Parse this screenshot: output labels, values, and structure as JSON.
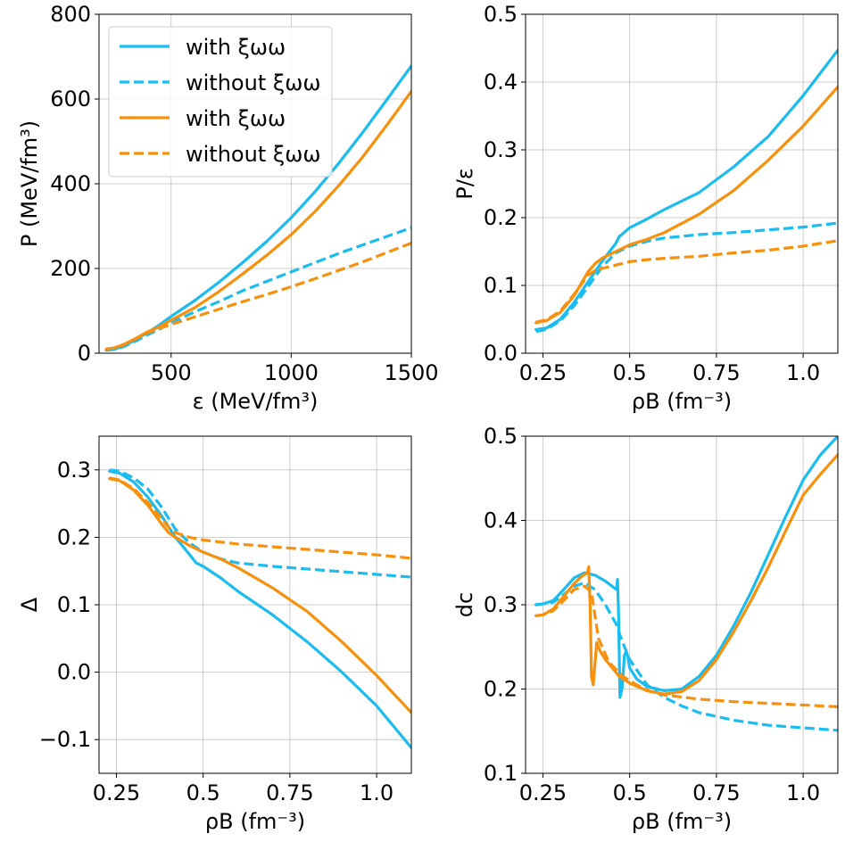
{
  "colors": {
    "series1": "#1bbcf0",
    "series2": "#f7900d"
  },
  "legend_labels": [
    "with ξωω",
    "without ξωω",
    "with ξωω",
    "without ξωω"
  ],
  "chart_data": [
    {
      "id": "pressure",
      "type": "line",
      "xlabel": "ε (MeV/fm³)",
      "ylabel": "P (MeV/fm³)",
      "xlim": [
        200,
        1500
      ],
      "ylim": [
        0,
        800
      ],
      "xticks": [
        500,
        1000,
        1500
      ],
      "yticks": [
        0,
        200,
        400,
        600,
        800
      ],
      "grid": true,
      "legend_placement": "upper-left",
      "series": [
        {
          "name": "with ξωω",
          "color": "#1bbcf0",
          "dash": "solid",
          "x": [
            230,
            260,
            300,
            350,
            400,
            450,
            500,
            600,
            700,
            800,
            900,
            1000,
            1100,
            1200,
            1300,
            1400,
            1500
          ],
          "y": [
            7,
            9,
            16,
            31,
            48,
            66,
            87,
            125,
            168,
            215,
            265,
            320,
            382,
            450,
            523,
            600,
            678
          ]
        },
        {
          "name": "without ξωω",
          "color": "#1bbcf0",
          "dash": "dashed",
          "x": [
            230,
            260,
            300,
            350,
            400,
            450,
            500,
            600,
            700,
            800,
            900,
            1000,
            1100,
            1200,
            1300,
            1400,
            1500
          ],
          "y": [
            7,
            9,
            15,
            28,
            43,
            56,
            72,
            98,
            122,
            148,
            170,
            192,
            214,
            236,
            256,
            276,
            296
          ]
        },
        {
          "name": "with ξωω",
          "color": "#f7900d",
          "dash": "solid",
          "x": [
            230,
            260,
            300,
            350,
            400,
            450,
            500,
            600,
            700,
            800,
            900,
            1000,
            1100,
            1200,
            1300,
            1400,
            1500
          ],
          "y": [
            10,
            12,
            20,
            34,
            50,
            62,
            78,
            108,
            146,
            188,
            232,
            280,
            335,
            397,
            465,
            540,
            618
          ]
        },
        {
          "name": "without ξωω",
          "color": "#f7900d",
          "dash": "dashed",
          "x": [
            230,
            260,
            300,
            350,
            400,
            450,
            500,
            600,
            700,
            800,
            900,
            1000,
            1100,
            1200,
            1300,
            1400,
            1500
          ],
          "y": [
            10,
            12,
            19,
            33,
            48,
            58,
            68,
            86,
            104,
            122,
            139,
            157,
            176,
            196,
            216,
            238,
            260
          ]
        }
      ]
    },
    {
      "id": "p-over-eps",
      "type": "line",
      "xlabel": "ρB (fm⁻³)",
      "ylabel": "P/ε",
      "xlim": [
        0.2,
        1.1
      ],
      "ylim": [
        0,
        0.5
      ],
      "xticks": [
        0.25,
        0.5,
        0.75,
        1.0
      ],
      "yticks": [
        0.0,
        0.1,
        0.2,
        0.3,
        0.4,
        0.5
      ],
      "grid": true,
      "series": [
        {
          "name": "with ξωω",
          "color": "#1bbcf0",
          "dash": "solid",
          "x": [
            0.23,
            0.26,
            0.3,
            0.34,
            0.38,
            0.42,
            0.46,
            0.47,
            0.5,
            0.55,
            0.6,
            0.7,
            0.8,
            0.9,
            1.0,
            1.1
          ],
          "y": [
            0.035,
            0.037,
            0.05,
            0.075,
            0.105,
            0.135,
            0.162,
            0.172,
            0.185,
            0.198,
            0.212,
            0.237,
            0.275,
            0.32,
            0.38,
            0.447
          ]
        },
        {
          "name": "without ξωω",
          "color": "#1bbcf0",
          "dash": "dashed",
          "x": [
            0.23,
            0.26,
            0.3,
            0.34,
            0.38,
            0.42,
            0.46,
            0.5,
            0.55,
            0.6,
            0.7,
            0.8,
            0.9,
            1.0,
            1.1
          ],
          "y": [
            0.032,
            0.035,
            0.048,
            0.07,
            0.098,
            0.127,
            0.148,
            0.158,
            0.165,
            0.17,
            0.175,
            0.178,
            0.182,
            0.186,
            0.192
          ]
        },
        {
          "name": "with ξωω",
          "color": "#f7900d",
          "dash": "solid",
          "x": [
            0.23,
            0.26,
            0.3,
            0.34,
            0.38,
            0.4,
            0.42,
            0.46,
            0.5,
            0.55,
            0.6,
            0.7,
            0.8,
            0.9,
            1.0,
            1.1
          ],
          "y": [
            0.045,
            0.048,
            0.06,
            0.085,
            0.12,
            0.132,
            0.14,
            0.15,
            0.16,
            0.168,
            0.178,
            0.205,
            0.24,
            0.285,
            0.335,
            0.393
          ]
        },
        {
          "name": "without ξωω",
          "color": "#f7900d",
          "dash": "dashed",
          "x": [
            0.23,
            0.26,
            0.3,
            0.34,
            0.38,
            0.4,
            0.42,
            0.46,
            0.5,
            0.55,
            0.6,
            0.7,
            0.8,
            0.9,
            1.0,
            1.1
          ],
          "y": [
            0.046,
            0.049,
            0.062,
            0.087,
            0.115,
            0.122,
            0.125,
            0.13,
            0.135,
            0.138,
            0.14,
            0.143,
            0.148,
            0.152,
            0.158,
            0.166
          ]
        }
      ]
    },
    {
      "id": "delta",
      "type": "line",
      "xlabel": "ρB (fm⁻³)",
      "ylabel": "Δ",
      "xlim": [
        0.2,
        1.1
      ],
      "ylim": [
        -0.15,
        0.35
      ],
      "xticks": [
        0.25,
        0.5,
        0.75,
        1.0
      ],
      "yticks": [
        -0.1,
        0.0,
        0.1,
        0.2,
        0.3
      ],
      "grid": true,
      "series": [
        {
          "name": "with ξωω",
          "color": "#1bbcf0",
          "dash": "solid",
          "x": [
            0.23,
            0.26,
            0.3,
            0.34,
            0.38,
            0.42,
            0.46,
            0.48,
            0.5,
            0.55,
            0.6,
            0.7,
            0.8,
            0.9,
            1.0,
            1.1
          ],
          "y": [
            0.298,
            0.295,
            0.282,
            0.26,
            0.232,
            0.2,
            0.175,
            0.162,
            0.157,
            0.14,
            0.12,
            0.085,
            0.045,
            0.0,
            -0.05,
            -0.112
          ]
        },
        {
          "name": "without ξωω",
          "color": "#1bbcf0",
          "dash": "dashed",
          "x": [
            0.23,
            0.26,
            0.3,
            0.34,
            0.38,
            0.42,
            0.46,
            0.5,
            0.55,
            0.6,
            0.7,
            0.8,
            0.9,
            1.0,
            1.1
          ],
          "y": [
            0.3,
            0.298,
            0.288,
            0.272,
            0.245,
            0.212,
            0.192,
            0.178,
            0.168,
            0.162,
            0.157,
            0.153,
            0.149,
            0.145,
            0.141
          ]
        },
        {
          "name": "with ξωω",
          "color": "#f7900d",
          "dash": "solid",
          "x": [
            0.23,
            0.26,
            0.3,
            0.34,
            0.38,
            0.4,
            0.42,
            0.46,
            0.5,
            0.55,
            0.6,
            0.7,
            0.8,
            0.9,
            1.0,
            1.1
          ],
          "y": [
            0.287,
            0.284,
            0.27,
            0.248,
            0.22,
            0.207,
            0.2,
            0.188,
            0.178,
            0.168,
            0.155,
            0.125,
            0.09,
            0.045,
            -0.005,
            -0.06
          ]
        },
        {
          "name": "without ξωω",
          "color": "#f7900d",
          "dash": "dashed",
          "x": [
            0.23,
            0.26,
            0.3,
            0.34,
            0.38,
            0.4,
            0.42,
            0.46,
            0.5,
            0.55,
            0.6,
            0.7,
            0.8,
            0.9,
            1.0,
            1.1
          ],
          "y": [
            0.288,
            0.285,
            0.272,
            0.252,
            0.228,
            0.215,
            0.207,
            0.2,
            0.196,
            0.193,
            0.19,
            0.186,
            0.182,
            0.178,
            0.174,
            0.169
          ]
        }
      ]
    },
    {
      "id": "dc",
      "type": "line",
      "xlabel": "ρB (fm⁻³)",
      "ylabel": "dc",
      "xlim": [
        0.2,
        1.1
      ],
      "ylim": [
        0.1,
        0.5
      ],
      "xticks": [
        0.25,
        0.5,
        0.75,
        1.0
      ],
      "yticks": [
        0.1,
        0.2,
        0.3,
        0.4,
        0.5
      ],
      "grid": true,
      "series": [
        {
          "name": "with ξωω",
          "color": "#1bbcf0",
          "dash": "solid",
          "x": [
            0.23,
            0.25,
            0.28,
            0.31,
            0.34,
            0.37,
            0.4,
            0.43,
            0.462,
            0.465,
            0.468,
            0.472,
            0.478,
            0.485,
            0.49,
            0.495,
            0.5,
            0.52,
            0.55,
            0.6,
            0.65,
            0.7,
            0.75,
            0.8,
            0.85,
            0.9,
            0.95,
            1.0,
            1.05,
            1.1
          ],
          "y": [
            0.3,
            0.301,
            0.305,
            0.318,
            0.332,
            0.338,
            0.335,
            0.328,
            0.318,
            0.33,
            0.29,
            0.19,
            0.2,
            0.24,
            0.245,
            0.238,
            0.225,
            0.212,
            0.203,
            0.198,
            0.2,
            0.215,
            0.24,
            0.275,
            0.315,
            0.36,
            0.405,
            0.448,
            0.478,
            0.5
          ]
        },
        {
          "name": "without ξωω",
          "color": "#1bbcf0",
          "dash": "dashed",
          "x": [
            0.23,
            0.25,
            0.28,
            0.31,
            0.34,
            0.37,
            0.4,
            0.43,
            0.46,
            0.48,
            0.5,
            0.55,
            0.6,
            0.65,
            0.7,
            0.8,
            0.9,
            1.0,
            1.1
          ],
          "y": [
            0.3,
            0.301,
            0.303,
            0.312,
            0.322,
            0.326,
            0.318,
            0.3,
            0.278,
            0.255,
            0.235,
            0.205,
            0.19,
            0.18,
            0.172,
            0.163,
            0.157,
            0.154,
            0.151
          ]
        },
        {
          "name": "with ξωω",
          "color": "#f7900d",
          "dash": "solid",
          "x": [
            0.23,
            0.25,
            0.28,
            0.31,
            0.34,
            0.36,
            0.378,
            0.382,
            0.386,
            0.39,
            0.395,
            0.405,
            0.415,
            0.43,
            0.45,
            0.47,
            0.5,
            0.55,
            0.6,
            0.65,
            0.7,
            0.75,
            0.8,
            0.85,
            0.9,
            0.95,
            1.0,
            1.05,
            1.1
          ],
          "y": [
            0.287,
            0.288,
            0.295,
            0.31,
            0.325,
            0.333,
            0.338,
            0.345,
            0.3,
            0.215,
            0.205,
            0.255,
            0.245,
            0.235,
            0.225,
            0.215,
            0.207,
            0.198,
            0.194,
            0.197,
            0.21,
            0.235,
            0.268,
            0.305,
            0.345,
            0.388,
            0.43,
            0.455,
            0.478
          ]
        },
        {
          "name": "without ξωω",
          "color": "#f7900d",
          "dash": "dashed",
          "x": [
            0.23,
            0.25,
            0.28,
            0.31,
            0.34,
            0.37,
            0.39,
            0.41,
            0.44,
            0.48,
            0.52,
            0.56,
            0.6,
            0.7,
            0.8,
            0.9,
            1.0,
            1.1
          ],
          "y": [
            0.287,
            0.288,
            0.293,
            0.305,
            0.318,
            0.322,
            0.315,
            0.26,
            0.232,
            0.215,
            0.205,
            0.197,
            0.193,
            0.188,
            0.185,
            0.183,
            0.181,
            0.179
          ]
        }
      ]
    }
  ]
}
